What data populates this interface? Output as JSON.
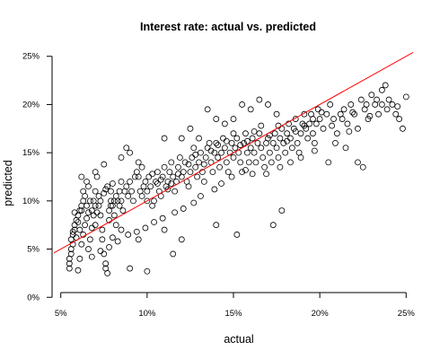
{
  "chart_data": {
    "type": "scatter",
    "title": "Interest rate: actual vs. predicted",
    "xlabel": "actual",
    "ylabel": "predicted",
    "x_ticks": [
      0.05,
      0.1,
      0.15,
      0.2,
      0.25
    ],
    "x_tick_labels": [
      "5%",
      "10%",
      "15%",
      "20%",
      "25%"
    ],
    "y_ticks": [
      0.0,
      0.05,
      0.1,
      0.15,
      0.2,
      0.25
    ],
    "y_tick_labels": [
      "0%",
      "5%",
      "10%",
      "15%",
      "20%",
      "25%"
    ],
    "xlim": [
      0.046,
      0.254
    ],
    "ylim": [
      -0.01,
      0.26
    ],
    "grid": false,
    "reference_line": {
      "slope": 1,
      "intercept": 0,
      "color": "#ff0000"
    },
    "point_style": "open-circle",
    "series": [
      {
        "values": [
          [
            0.055,
            0.03
          ],
          [
            0.055,
            0.035
          ],
          [
            0.055,
            0.04
          ],
          [
            0.056,
            0.045
          ],
          [
            0.056,
            0.05
          ],
          [
            0.057,
            0.055
          ],
          [
            0.056,
            0.06
          ],
          [
            0.057,
            0.065
          ],
          [
            0.058,
            0.07
          ],
          [
            0.058,
            0.075
          ],
          [
            0.059,
            0.08
          ],
          [
            0.06,
            0.085
          ],
          [
            0.061,
            0.09
          ],
          [
            0.062,
            0.095
          ],
          [
            0.063,
            0.1
          ],
          [
            0.06,
            0.028
          ],
          [
            0.061,
            0.04
          ],
          [
            0.062,
            0.055
          ],
          [
            0.063,
            0.065
          ],
          [
            0.064,
            0.075
          ],
          [
            0.065,
            0.082
          ],
          [
            0.066,
            0.088
          ],
          [
            0.066,
            0.05
          ],
          [
            0.067,
            0.06
          ],
          [
            0.068,
            0.072
          ],
          [
            0.068,
            0.09
          ],
          [
            0.069,
            0.1
          ],
          [
            0.07,
            0.095
          ],
          [
            0.07,
            0.11
          ],
          [
            0.071,
            0.125
          ],
          [
            0.072,
            0.105
          ],
          [
            0.073,
            0.085
          ],
          [
            0.074,
            0.07
          ],
          [
            0.074,
            0.06
          ],
          [
            0.075,
            0.045
          ],
          [
            0.076,
            0.035
          ],
          [
            0.076,
            0.03
          ],
          [
            0.077,
            0.025
          ],
          [
            0.078,
            0.08
          ],
          [
            0.078,
            0.09
          ],
          [
            0.079,
            0.1
          ],
          [
            0.079,
            0.11
          ],
          [
            0.08,
            0.118
          ],
          [
            0.08,
            0.095
          ],
          [
            0.081,
            0.085
          ],
          [
            0.082,
            0.075
          ],
          [
            0.083,
            0.1
          ],
          [
            0.084,
            0.11
          ],
          [
            0.085,
            0.12
          ],
          [
            0.086,
            0.09
          ],
          [
            0.066,
            0.115
          ],
          [
            0.063,
            0.11
          ],
          [
            0.064,
            0.105
          ],
          [
            0.062,
            0.09
          ],
          [
            0.06,
            0.078
          ],
          [
            0.058,
            0.088
          ],
          [
            0.057,
            0.068
          ],
          [
            0.059,
            0.062
          ],
          [
            0.061,
            0.07
          ],
          [
            0.065,
            0.095
          ],
          [
            0.067,
            0.1
          ],
          [
            0.069,
            0.085
          ],
          [
            0.07,
            0.075
          ],
          [
            0.071,
            0.088
          ],
          [
            0.072,
            0.095
          ],
          [
            0.073,
            0.1
          ],
          [
            0.075,
            0.108
          ],
          [
            0.076,
            0.112
          ],
          [
            0.077,
            0.115
          ],
          [
            0.079,
            0.095
          ],
          [
            0.081,
            0.1
          ],
          [
            0.082,
            0.105
          ],
          [
            0.084,
            0.095
          ],
          [
            0.085,
            0.1
          ],
          [
            0.087,
            0.11
          ],
          [
            0.088,
            0.115
          ],
          [
            0.089,
            0.105
          ],
          [
            0.09,
            0.12
          ],
          [
            0.091,
            0.11
          ],
          [
            0.092,
            0.1
          ],
          [
            0.093,
            0.125
          ],
          [
            0.094,
            0.13
          ],
          [
            0.095,
            0.14
          ],
          [
            0.096,
            0.11
          ],
          [
            0.097,
            0.105
          ],
          [
            0.098,
            0.115
          ],
          [
            0.099,
            0.12
          ],
          [
            0.1,
            0.1
          ],
          [
            0.1,
            0.11
          ],
          [
            0.101,
            0.125
          ],
          [
            0.102,
            0.115
          ],
          [
            0.103,
            0.095
          ],
          [
            0.104,
            0.1
          ],
          [
            0.105,
            0.12
          ],
          [
            0.106,
            0.13
          ],
          [
            0.107,
            0.11
          ],
          [
            0.108,
            0.105
          ],
          [
            0.109,
            0.125
          ],
          [
            0.11,
            0.135
          ],
          [
            0.111,
            0.115
          ],
          [
            0.112,
            0.12
          ],
          [
            0.113,
            0.13
          ],
          [
            0.114,
            0.14
          ],
          [
            0.115,
            0.125
          ],
          [
            0.116,
            0.11
          ],
          [
            0.117,
            0.12
          ],
          [
            0.118,
            0.135
          ],
          [
            0.119,
            0.145
          ],
          [
            0.12,
            0.125
          ],
          [
            0.121,
            0.13
          ],
          [
            0.122,
            0.14
          ],
          [
            0.123,
            0.12
          ],
          [
            0.124,
            0.115
          ],
          [
            0.125,
            0.13
          ],
          [
            0.126,
            0.145
          ],
          [
            0.127,
            0.155
          ],
          [
            0.128,
            0.135
          ],
          [
            0.129,
            0.125
          ],
          [
            0.13,
            0.14
          ],
          [
            0.131,
            0.15
          ],
          [
            0.132,
            0.13
          ],
          [
            0.133,
            0.12
          ],
          [
            0.134,
            0.145
          ],
          [
            0.135,
            0.155
          ],
          [
            0.136,
            0.16
          ],
          [
            0.137,
            0.14
          ],
          [
            0.138,
            0.13
          ],
          [
            0.139,
            0.15
          ],
          [
            0.14,
            0.16
          ],
          [
            0.141,
            0.145
          ],
          [
            0.142,
            0.135
          ],
          [
            0.143,
            0.15
          ],
          [
            0.144,
            0.165
          ],
          [
            0.145,
            0.155
          ],
          [
            0.146,
            0.14
          ],
          [
            0.147,
            0.13
          ],
          [
            0.148,
            0.15
          ],
          [
            0.149,
            0.16
          ],
          [
            0.15,
            0.145
          ],
          [
            0.151,
            0.155
          ],
          [
            0.152,
            0.165
          ],
          [
            0.153,
            0.15
          ],
          [
            0.154,
            0.14
          ],
          [
            0.155,
            0.13
          ],
          [
            0.156,
            0.16
          ],
          [
            0.157,
            0.17
          ],
          [
            0.158,
            0.15
          ],
          [
            0.159,
            0.14
          ],
          [
            0.16,
            0.155
          ],
          [
            0.161,
            0.165
          ],
          [
            0.162,
            0.15
          ],
          [
            0.163,
            0.14
          ],
          [
            0.164,
            0.16
          ],
          [
            0.165,
            0.17
          ],
          [
            0.166,
            0.155
          ],
          [
            0.167,
            0.145
          ],
          [
            0.168,
            0.135
          ],
          [
            0.169,
            0.16
          ],
          [
            0.17,
            0.165
          ],
          [
            0.171,
            0.15
          ],
          [
            0.172,
            0.14
          ],
          [
            0.173,
            0.16
          ],
          [
            0.174,
            0.17
          ],
          [
            0.175,
            0.155
          ],
          [
            0.176,
            0.145
          ],
          [
            0.177,
            0.165
          ],
          [
            0.178,
            0.175
          ],
          [
            0.179,
            0.16
          ],
          [
            0.18,
            0.15
          ],
          [
            0.181,
            0.17
          ],
          [
            0.182,
            0.18
          ],
          [
            0.183,
            0.165
          ],
          [
            0.184,
            0.155
          ],
          [
            0.185,
            0.175
          ],
          [
            0.186,
            0.185
          ],
          [
            0.187,
            0.16
          ],
          [
            0.188,
            0.15
          ],
          [
            0.189,
            0.17
          ],
          [
            0.19,
            0.18
          ],
          [
            0.191,
            0.19
          ],
          [
            0.192,
            0.175
          ],
          [
            0.193,
            0.165
          ],
          [
            0.194,
            0.18
          ],
          [
            0.195,
            0.19
          ],
          [
            0.196,
            0.17
          ],
          [
            0.197,
            0.16
          ],
          [
            0.198,
            0.18
          ],
          [
            0.199,
            0.195
          ],
          [
            0.2,
            0.185
          ],
          [
            0.202,
            0.175
          ],
          [
            0.204,
            0.19
          ],
          [
            0.206,
            0.2
          ],
          [
            0.208,
            0.185
          ],
          [
            0.21,
            0.17
          ],
          [
            0.212,
            0.19
          ],
          [
            0.214,
            0.195
          ],
          [
            0.216,
            0.18
          ],
          [
            0.218,
            0.2
          ],
          [
            0.22,
            0.19
          ],
          [
            0.222,
            0.175
          ],
          [
            0.224,
            0.205
          ],
          [
            0.226,
            0.195
          ],
          [
            0.228,
            0.185
          ],
          [
            0.23,
            0.21
          ],
          [
            0.232,
            0.2
          ],
          [
            0.234,
            0.19
          ],
          [
            0.236,
            0.215
          ],
          [
            0.238,
            0.22
          ],
          [
            0.24,
            0.205
          ],
          [
            0.242,
            0.2
          ],
          [
            0.244,
            0.19
          ],
          [
            0.246,
            0.185
          ],
          [
            0.248,
            0.175
          ],
          [
            0.25,
            0.208
          ],
          [
            0.222,
            0.14
          ],
          [
            0.225,
            0.135
          ],
          [
            0.215,
            0.155
          ],
          [
            0.205,
            0.14
          ],
          [
            0.178,
            0.09
          ],
          [
            0.173,
            0.075
          ],
          [
            0.152,
            0.065
          ],
          [
            0.14,
            0.075
          ],
          [
            0.12,
            0.06
          ],
          [
            0.115,
            0.045
          ],
          [
            0.11,
            0.07
          ],
          [
            0.1,
            0.027
          ],
          [
            0.095,
            0.06
          ],
          [
            0.09,
            0.03
          ],
          [
            0.085,
            0.07
          ],
          [
            0.08,
            0.062
          ],
          [
            0.135,
            0.195
          ],
          [
            0.14,
            0.185
          ],
          [
            0.145,
            0.18
          ],
          [
            0.15,
            0.185
          ],
          [
            0.155,
            0.2
          ],
          [
            0.16,
            0.195
          ],
          [
            0.165,
            0.205
          ],
          [
            0.17,
            0.2
          ],
          [
            0.175,
            0.19
          ],
          [
            0.12,
            0.165
          ],
          [
            0.125,
            0.175
          ],
          [
            0.13,
            0.165
          ],
          [
            0.11,
            0.165
          ],
          [
            0.09,
            0.15
          ],
          [
            0.088,
            0.155
          ],
          [
            0.085,
            0.145
          ],
          [
            0.075,
            0.138
          ],
          [
            0.07,
            0.13
          ],
          [
            0.065,
            0.12
          ],
          [
            0.062,
            0.125
          ],
          [
            0.095,
            0.125
          ],
          [
            0.097,
            0.135
          ],
          [
            0.103,
            0.128
          ],
          [
            0.106,
            0.118
          ],
          [
            0.108,
            0.122
          ],
          [
            0.112,
            0.112
          ],
          [
            0.114,
            0.118
          ],
          [
            0.118,
            0.128
          ],
          [
            0.124,
            0.138
          ],
          [
            0.128,
            0.148
          ],
          [
            0.133,
            0.138
          ],
          [
            0.137,
            0.152
          ],
          [
            0.141,
            0.158
          ],
          [
            0.146,
            0.162
          ],
          [
            0.15,
            0.17
          ],
          [
            0.154,
            0.158
          ],
          [
            0.158,
            0.162
          ],
          [
            0.162,
            0.172
          ],
          [
            0.166,
            0.178
          ],
          [
            0.171,
            0.168
          ],
          [
            0.176,
            0.178
          ],
          [
            0.181,
            0.162
          ],
          [
            0.186,
            0.172
          ],
          [
            0.191,
            0.178
          ],
          [
            0.196,
            0.185
          ],
          [
            0.201,
            0.192
          ],
          [
            0.207,
            0.178
          ],
          [
            0.213,
            0.185
          ],
          [
            0.219,
            0.192
          ],
          [
            0.227,
            0.2
          ],
          [
            0.233,
            0.205
          ],
          [
            0.239,
            0.195
          ],
          [
            0.245,
            0.198
          ],
          [
            0.236,
            0.2
          ],
          [
            0.229,
            0.188
          ],
          [
            0.217,
            0.172
          ],
          [
            0.209,
            0.16
          ],
          [
            0.197,
            0.152
          ],
          [
            0.189,
            0.145
          ],
          [
            0.183,
            0.14
          ],
          [
            0.177,
            0.135
          ],
          [
            0.169,
            0.128
          ],
          [
            0.161,
            0.128
          ],
          [
            0.157,
            0.132
          ],
          [
            0.149,
            0.125
          ],
          [
            0.143,
            0.118
          ],
          [
            0.139,
            0.112
          ],
          [
            0.131,
            0.105
          ],
          [
            0.127,
            0.098
          ],
          [
            0.121,
            0.092
          ],
          [
            0.116,
            0.088
          ],
          [
            0.109,
            0.082
          ],
          [
            0.104,
            0.078
          ],
          [
            0.099,
            0.072
          ],
          [
            0.094,
            0.068
          ],
          [
            0.089,
            0.065
          ],
          [
            0.083,
            0.058
          ],
          [
            0.078,
            0.052
          ],
          [
            0.073,
            0.048
          ],
          [
            0.068,
            0.042
          ]
        ]
      }
    ]
  }
}
